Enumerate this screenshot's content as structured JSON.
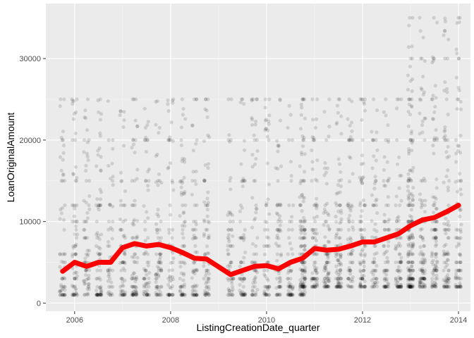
{
  "chart_data": {
    "type": "scatter",
    "xlabel": "ListingCreationDate_quarter",
    "ylabel": "LoanOriginalAmount",
    "xlim": [
      2005.4,
      2014.25
    ],
    "ylim": [
      -1000,
      36750
    ],
    "x_ticks": [
      2006,
      2008,
      2010,
      2012,
      2014
    ],
    "x_tick_labels": [
      "2006",
      "2008",
      "2010",
      "2012",
      "2014"
    ],
    "y_ticks": [
      0,
      10000,
      20000,
      30000
    ],
    "y_tick_labels": [
      "0",
      "10000",
      "20000",
      "30000"
    ],
    "grid": true,
    "background": "#ebebeb",
    "point_color": "#000000",
    "trend_color": "#ff0000",
    "series": [
      {
        "kind": "scatter-points",
        "clusters": [
          {
            "x_range": [
              2005.75,
              2008.75
            ],
            "y_range": [
              1000,
              25000
            ]
          },
          {
            "x_range": [
              2009.25,
              2010.75
            ],
            "y_range": [
              1000,
              25000
            ]
          },
          {
            "x_range": [
              2010.75,
              2013.0
            ],
            "y_range": [
              2000,
              25000
            ]
          },
          {
            "x_range": [
              2013.0,
              2014.0
            ],
            "y_range": [
              2000,
              35000
            ]
          }
        ]
      },
      {
        "kind": "trend-line",
        "x": [
          2005.75,
          2006.0,
          2006.25,
          2006.5,
          2006.75,
          2007.0,
          2007.25,
          2007.5,
          2007.75,
          2008.0,
          2008.25,
          2008.5,
          2008.75,
          2009.25,
          2009.5,
          2009.75,
          2010.0,
          2010.25,
          2010.5,
          2010.75,
          2011.0,
          2011.25,
          2011.5,
          2011.75,
          2012.0,
          2012.25,
          2012.5,
          2012.75,
          2013.0,
          2013.25,
          2013.5,
          2013.75,
          2014.0
        ],
        "y": [
          3900,
          5000,
          4500,
          5000,
          5000,
          6800,
          7300,
          7000,
          7200,
          6800,
          6200,
          5500,
          5400,
          3500,
          4000,
          4500,
          4600,
          4200,
          5000,
          5500,
          6700,
          6500,
          6600,
          7000,
          7500,
          7500,
          8000,
          8500,
          9500,
          10200,
          10500,
          11200,
          12000
        ]
      }
    ]
  }
}
